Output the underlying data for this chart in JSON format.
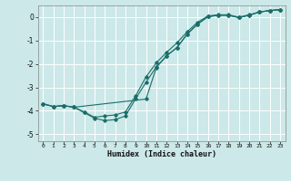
{
  "background_color": "#cce8e8",
  "grid_color": "#ffffff",
  "line_color": "#1a6e6a",
  "xlabel": "Humidex (Indice chaleur)",
  "xlim": [
    -0.5,
    23.5
  ],
  "ylim": [
    -5.3,
    0.5
  ],
  "yticks": [
    0,
    -1,
    -2,
    -3,
    -4,
    -5
  ],
  "xticks": [
    0,
    1,
    2,
    3,
    4,
    5,
    6,
    7,
    8,
    9,
    10,
    11,
    12,
    13,
    14,
    15,
    16,
    17,
    18,
    19,
    20,
    21,
    22,
    23
  ],
  "line1_x": [
    0,
    1,
    2,
    3,
    10,
    11,
    12,
    13,
    14,
    15,
    16,
    17,
    18,
    19,
    20,
    21,
    22,
    23
  ],
  "line1_y": [
    -3.7,
    -3.82,
    -3.78,
    -3.85,
    -3.5,
    -2.15,
    -1.65,
    -1.3,
    -0.72,
    -0.3,
    0.02,
    0.08,
    0.08,
    -0.02,
    0.08,
    0.22,
    0.28,
    0.32
  ],
  "line2_x": [
    0,
    1,
    2,
    3,
    4,
    5,
    6,
    7,
    8,
    9,
    10,
    11,
    12,
    13,
    14,
    15,
    16,
    17,
    18,
    19,
    20,
    21,
    22,
    23
  ],
  "line2_y": [
    -3.7,
    -3.82,
    -3.78,
    -3.85,
    -4.08,
    -4.32,
    -4.42,
    -4.38,
    -4.22,
    -3.48,
    -2.78,
    -2.12,
    -1.65,
    -1.3,
    -0.72,
    -0.3,
    0.02,
    0.08,
    0.08,
    -0.02,
    0.08,
    0.22,
    0.28,
    0.32
  ],
  "line3_x": [
    0,
    1,
    2,
    3,
    4,
    5,
    6,
    7,
    8,
    9,
    10,
    11,
    12,
    13,
    14,
    15,
    16,
    17,
    18,
    19,
    20,
    21,
    22,
    23
  ],
  "line3_y": [
    -3.7,
    -3.82,
    -3.78,
    -3.85,
    -4.05,
    -4.28,
    -4.22,
    -4.18,
    -4.05,
    -3.35,
    -2.55,
    -1.95,
    -1.5,
    -1.1,
    -0.62,
    -0.22,
    0.05,
    0.1,
    0.1,
    0.0,
    0.1,
    0.22,
    0.28,
    0.32
  ]
}
